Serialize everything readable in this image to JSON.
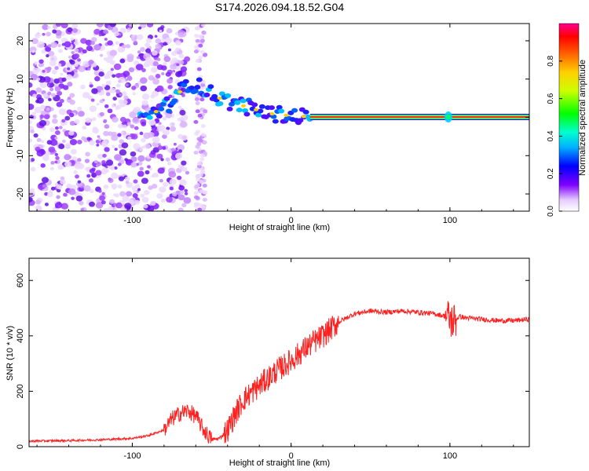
{
  "title": "S174.2026.094.18.52.G04",
  "chart_data": [
    {
      "type": "heatmap",
      "name": "spectrogram",
      "xlabel": "Height of straight line (km)",
      "ylabel": "Frequency (Hz)",
      "xlim": [
        -165,
        150
      ],
      "ylim": [
        -24.5,
        24.5
      ],
      "xticks": [
        -100,
        0,
        100
      ],
      "yticks": [
        -20,
        -10,
        0,
        10,
        20
      ],
      "ridge": {
        "x": [
          -90,
          -80,
          -72,
          -66,
          -60,
          -52,
          -45,
          -38,
          -30,
          -22,
          -15,
          -8,
          -2,
          5,
          12,
          150
        ],
        "y": [
          0.5,
          2.5,
          5.5,
          9,
          8.5,
          6.5,
          5,
          4,
          3,
          2,
          1,
          0.8,
          0.5,
          0.3,
          0.1,
          0.1
        ]
      },
      "colorbar": {
        "label": "Normalized spectral amplitude",
        "range": [
          0.0,
          1.0
        ],
        "ticks": [
          0.0,
          0.2,
          0.4,
          0.6,
          0.8
        ]
      }
    },
    {
      "type": "line",
      "name": "snr",
      "xlabel": "Height of straight line (km)",
      "ylabel": "SNR (10 * v/v)",
      "xlim": [
        -165,
        150
      ],
      "ylim": [
        0,
        680
      ],
      "xticks": [
        -100,
        0,
        100
      ],
      "yticks": [
        0,
        200,
        400,
        600
      ],
      "series": [
        {
          "name": "SNR",
          "color": "#ff2020",
          "x": [
            -165,
            -140,
            -120,
            -100,
            -90,
            -80,
            -75,
            -70,
            -65,
            -60,
            -55,
            -50,
            -45,
            -40,
            -35,
            -30,
            -20,
            -10,
            0,
            10,
            20,
            25,
            30,
            40,
            50,
            60,
            70,
            80,
            90,
            98,
            102,
            106,
            110,
            120,
            130,
            140,
            150
          ],
          "y": [
            20,
            22,
            25,
            30,
            40,
            60,
            100,
            120,
            130,
            110,
            60,
            25,
            30,
            60,
            120,
            170,
            220,
            270,
            310,
            360,
            400,
            425,
            450,
            480,
            490,
            485,
            490,
            485,
            480,
            470,
            450,
            470,
            465,
            460,
            455,
            455,
            460
          ]
        }
      ]
    }
  ]
}
